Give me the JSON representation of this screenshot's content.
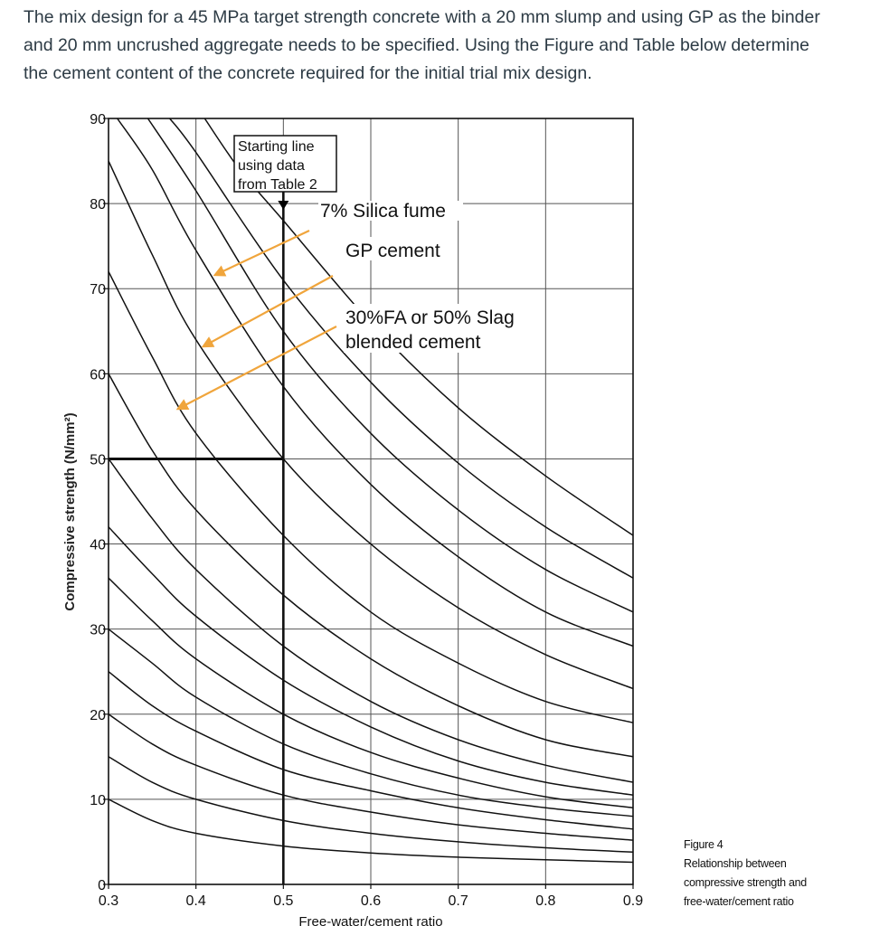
{
  "question": {
    "text": "The mix design for a 45 MPa target strength concrete with a 20 mm slump and using GP as the binder and 20 mm uncrushed aggregate needs to be specified. Using the Figure and Table below determine the cement content of the concrete required for the initial trial mix design."
  },
  "figure": {
    "caption_title": "Figure 4",
    "caption_line1": "Relationship between",
    "caption_line2": "compressive strength and",
    "caption_line3": "free-water/cement ratio"
  },
  "annotations": {
    "box_line1": "Starting line",
    "box_line2": "using data",
    "box_line3": "from Table 2",
    "silica": "7% Silica fume",
    "gp": "GP cement",
    "blend_line1": "30%FA or 50% Slag",
    "blend_line2": "blended cement",
    "arrow_color": "#f0a53c"
  },
  "chart_data": {
    "type": "line",
    "xlabel": "Free-water/cement ratio",
    "ylabel": "Compressive strength (N/mm²)",
    "xlim": [
      0.3,
      0.9
    ],
    "ylim": [
      0,
      90
    ],
    "x_ticks": [
      "0.3",
      "0.4",
      "0.5",
      "0.6",
      "0.7",
      "0.8",
      "0.9"
    ],
    "y_ticks": [
      "0",
      "10",
      "20",
      "30",
      "40",
      "50",
      "60",
      "70",
      "80",
      "90"
    ],
    "grid": true,
    "starting_point": {
      "x": 0.5,
      "y": 50
    },
    "curves": [
      {
        "x": [
          0.3,
          0.35,
          0.4,
          0.5,
          0.6,
          0.7,
          0.8,
          0.9
        ],
        "y": [
          10,
          7.5,
          6,
          4.5,
          3.7,
          3.2,
          2.9,
          2.6
        ]
      },
      {
        "x": [
          0.3,
          0.35,
          0.4,
          0.5,
          0.6,
          0.7,
          0.8,
          0.9
        ],
        "y": [
          15,
          12,
          10,
          7.5,
          6,
          5,
          4.3,
          3.8
        ]
      },
      {
        "x": [
          0.3,
          0.35,
          0.4,
          0.5,
          0.6,
          0.7,
          0.8,
          0.9
        ],
        "y": [
          20,
          16.5,
          14,
          10.5,
          8.5,
          7,
          6,
          5.2
        ]
      },
      {
        "x": [
          0.3,
          0.35,
          0.4,
          0.5,
          0.6,
          0.7,
          0.8,
          0.9
        ],
        "y": [
          25,
          21,
          18,
          13.5,
          11,
          9,
          7.6,
          6.5
        ]
      },
      {
        "x": [
          0.3,
          0.35,
          0.4,
          0.5,
          0.6,
          0.7,
          0.8,
          0.9
        ],
        "y": [
          30,
          26,
          22,
          16.5,
          13,
          10.5,
          9,
          8
        ]
      },
      {
        "x": [
          0.3,
          0.35,
          0.4,
          0.5,
          0.6,
          0.7,
          0.8,
          0.9
        ],
        "y": [
          36,
          31,
          26.5,
          20,
          15.5,
          12.5,
          10.3,
          9
        ]
      },
      {
        "x": [
          0.3,
          0.35,
          0.4,
          0.5,
          0.6,
          0.7,
          0.8,
          0.9
        ],
        "y": [
          42,
          36.5,
          31.5,
          24,
          18.5,
          14.5,
          12,
          10.5
        ]
      },
      {
        "x": [
          0.3,
          0.35,
          0.4,
          0.5,
          0.6,
          0.7,
          0.8,
          0.9
        ],
        "y": [
          50,
          43,
          37,
          28,
          21.5,
          17,
          14,
          12
        ]
      },
      {
        "x": [
          0.3,
          0.35,
          0.4,
          0.5,
          0.6,
          0.7,
          0.8,
          0.9
        ],
        "y": [
          60,
          51,
          44,
          34,
          26.5,
          21,
          17,
          15
        ]
      },
      {
        "x": [
          0.3,
          0.35,
          0.4,
          0.5,
          0.6,
          0.7,
          0.8,
          0.9
        ],
        "y": [
          72,
          62,
          53,
          41,
          32,
          26,
          21.5,
          19
        ]
      },
      {
        "x": [
          0.3,
          0.35,
          0.4,
          0.5,
          0.6,
          0.7,
          0.8,
          0.9
        ],
        "y": [
          85,
          74,
          64,
          50,
          40,
          32.5,
          27,
          23
        ]
      },
      {
        "x": [
          0.31,
          0.35,
          0.4,
          0.5,
          0.6,
          0.7,
          0.8,
          0.9
        ],
        "y": [
          90,
          84,
          74.5,
          58.5,
          47,
          38.5,
          32,
          28
        ]
      },
      {
        "x": [
          0.345,
          0.4,
          0.5,
          0.6,
          0.7,
          0.8,
          0.9
        ],
        "y": [
          90,
          81.5,
          65,
          53,
          44,
          37,
          32
        ]
      },
      {
        "x": [
          0.37,
          0.4,
          0.5,
          0.6,
          0.7,
          0.8,
          0.9
        ],
        "y": [
          90,
          86,
          71,
          59,
          49.5,
          42,
          36
        ]
      },
      {
        "x": [
          0.41,
          0.45,
          0.5,
          0.6,
          0.7,
          0.8,
          0.9
        ],
        "y": [
          90,
          84,
          78,
          66,
          56,
          48,
          41
        ]
      }
    ]
  }
}
